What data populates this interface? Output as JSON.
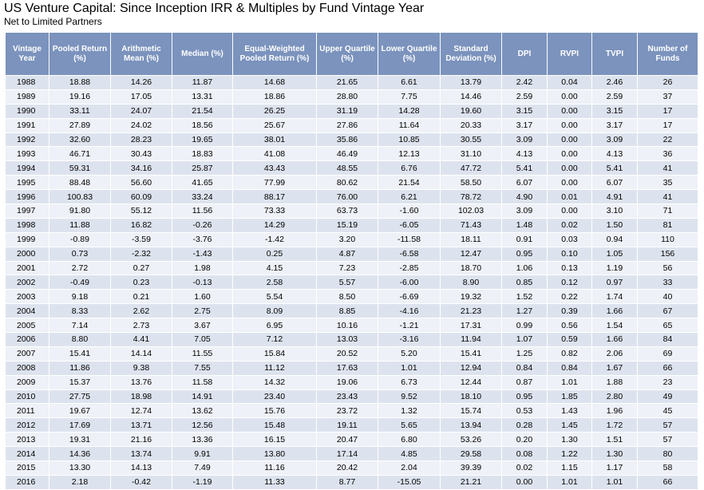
{
  "title": "US Venture Capital: Since Inception IRR & Multiples by Fund Vintage Year",
  "subtitle": "Net to Limited Partners",
  "columns": [
    "Vintage Year",
    "Pooled Return (%)",
    "Arithmetic Mean (%)",
    "Median (%)",
    "Equal-Weighted Pooled Return (%)",
    "Upper Quartile (%)",
    "Lower Quartile (%)",
    "Standard Deviation (%)",
    "DPI",
    "RVPI",
    "TVPI",
    "Number of Funds"
  ],
  "rows": [
    [
      "1988",
      "18.88",
      "14.26",
      "11.87",
      "14.68",
      "21.65",
      "6.61",
      "13.79",
      "2.42",
      "0.04",
      "2.46",
      "26"
    ],
    [
      "1989",
      "19.16",
      "17.05",
      "13.31",
      "18.86",
      "28.80",
      "7.75",
      "14.46",
      "2.59",
      "0.00",
      "2.59",
      "37"
    ],
    [
      "1990",
      "33.11",
      "24.07",
      "21.54",
      "26.25",
      "31.19",
      "14.28",
      "19.60",
      "3.15",
      "0.00",
      "3.15",
      "17"
    ],
    [
      "1991",
      "27.89",
      "24.02",
      "18.56",
      "25.67",
      "27.86",
      "11.64",
      "20.33",
      "3.17",
      "0.00",
      "3.17",
      "17"
    ],
    [
      "1992",
      "32.60",
      "28.23",
      "19.65",
      "38.01",
      "35.86",
      "10.85",
      "30.55",
      "3.09",
      "0.00",
      "3.09",
      "22"
    ],
    [
      "1993",
      "46.71",
      "30.43",
      "18.83",
      "41.08",
      "46.49",
      "12.13",
      "31.10",
      "4.13",
      "0.00",
      "4.13",
      "36"
    ],
    [
      "1994",
      "59.31",
      "34.16",
      "25.87",
      "43.43",
      "48.55",
      "6.76",
      "47.72",
      "5.41",
      "0.00",
      "5.41",
      "41"
    ],
    [
      "1995",
      "88.48",
      "56.60",
      "41.65",
      "77.99",
      "80.62",
      "21.54",
      "58.50",
      "6.07",
      "0.00",
      "6.07",
      "35"
    ],
    [
      "1996",
      "100.83",
      "60.09",
      "33.24",
      "88.17",
      "76.00",
      "6.21",
      "78.72",
      "4.90",
      "0.01",
      "4.91",
      "41"
    ],
    [
      "1997",
      "91.80",
      "55.12",
      "11.56",
      "73.33",
      "63.73",
      "-1.60",
      "102.03",
      "3.09",
      "0.00",
      "3.10",
      "71"
    ],
    [
      "1998",
      "11.88",
      "16.82",
      "-0.26",
      "14.29",
      "15.19",
      "-6.05",
      "71.43",
      "1.48",
      "0.02",
      "1.50",
      "81"
    ],
    [
      "1999",
      "-0.89",
      "-3.59",
      "-3.76",
      "-1.42",
      "3.20",
      "-11.58",
      "18.11",
      "0.91",
      "0.03",
      "0.94",
      "110"
    ],
    [
      "2000",
      "0.73",
      "-2.32",
      "-1.43",
      "0.25",
      "4.87",
      "-6.58",
      "12.47",
      "0.95",
      "0.10",
      "1.05",
      "156"
    ],
    [
      "2001",
      "2.72",
      "0.27",
      "1.98",
      "4.15",
      "7.23",
      "-2.85",
      "18.70",
      "1.06",
      "0.13",
      "1.19",
      "56"
    ],
    [
      "2002",
      "-0.49",
      "0.23",
      "-0.13",
      "2.58",
      "5.57",
      "-6.00",
      "8.90",
      "0.85",
      "0.12",
      "0.97",
      "33"
    ],
    [
      "2003",
      "9.18",
      "0.21",
      "1.60",
      "5.54",
      "8.50",
      "-6.69",
      "19.32",
      "1.52",
      "0.22",
      "1.74",
      "40"
    ],
    [
      "2004",
      "8.33",
      "2.62",
      "2.75",
      "8.09",
      "8.85",
      "-4.16",
      "21.23",
      "1.27",
      "0.39",
      "1.66",
      "67"
    ],
    [
      "2005",
      "7.14",
      "2.73",
      "3.67",
      "6.95",
      "10.16",
      "-1.21",
      "17.31",
      "0.99",
      "0.56",
      "1.54",
      "65"
    ],
    [
      "2006",
      "8.80",
      "4.41",
      "7.05",
      "7.12",
      "13.03",
      "-3.16",
      "11.94",
      "1.07",
      "0.59",
      "1.66",
      "84"
    ],
    [
      "2007",
      "15.41",
      "14.14",
      "11.55",
      "15.84",
      "20.52",
      "5.20",
      "15.41",
      "1.25",
      "0.82",
      "2.06",
      "69"
    ],
    [
      "2008",
      "11.86",
      "9.38",
      "7.55",
      "11.12",
      "17.63",
      "1.01",
      "12.94",
      "0.84",
      "0.84",
      "1.67",
      "66"
    ],
    [
      "2009",
      "15.37",
      "13.76",
      "11.58",
      "14.32",
      "19.06",
      "6.73",
      "12.44",
      "0.87",
      "1.01",
      "1.88",
      "23"
    ],
    [
      "2010",
      "27.75",
      "18.98",
      "14.91",
      "23.40",
      "23.43",
      "9.52",
      "18.10",
      "0.95",
      "1.85",
      "2.80",
      "49"
    ],
    [
      "2011",
      "19.67",
      "12.74",
      "13.62",
      "15.76",
      "23.72",
      "1.32",
      "15.74",
      "0.53",
      "1.43",
      "1.96",
      "45"
    ],
    [
      "2012",
      "17.69",
      "13.71",
      "12.56",
      "15.48",
      "19.11",
      "5.65",
      "13.94",
      "0.28",
      "1.45",
      "1.72",
      "57"
    ],
    [
      "2013",
      "19.31",
      "21.16",
      "13.36",
      "16.15",
      "20.47",
      "6.80",
      "53.26",
      "0.20",
      "1.30",
      "1.51",
      "57"
    ],
    [
      "2014",
      "14.36",
      "13.74",
      "9.91",
      "13.80",
      "17.14",
      "4.85",
      "29.58",
      "0.08",
      "1.22",
      "1.30",
      "80"
    ],
    [
      "2015",
      "13.30",
      "14.13",
      "7.49",
      "11.16",
      "20.42",
      "2.04",
      "39.39",
      "0.02",
      "1.15",
      "1.17",
      "58"
    ],
    [
      "2016",
      "2.18",
      "-0.42",
      "-1.19",
      "11.33",
      "8.77",
      "-15.05",
      "21.21",
      "0.00",
      "1.01",
      "1.01",
      "66"
    ]
  ]
}
